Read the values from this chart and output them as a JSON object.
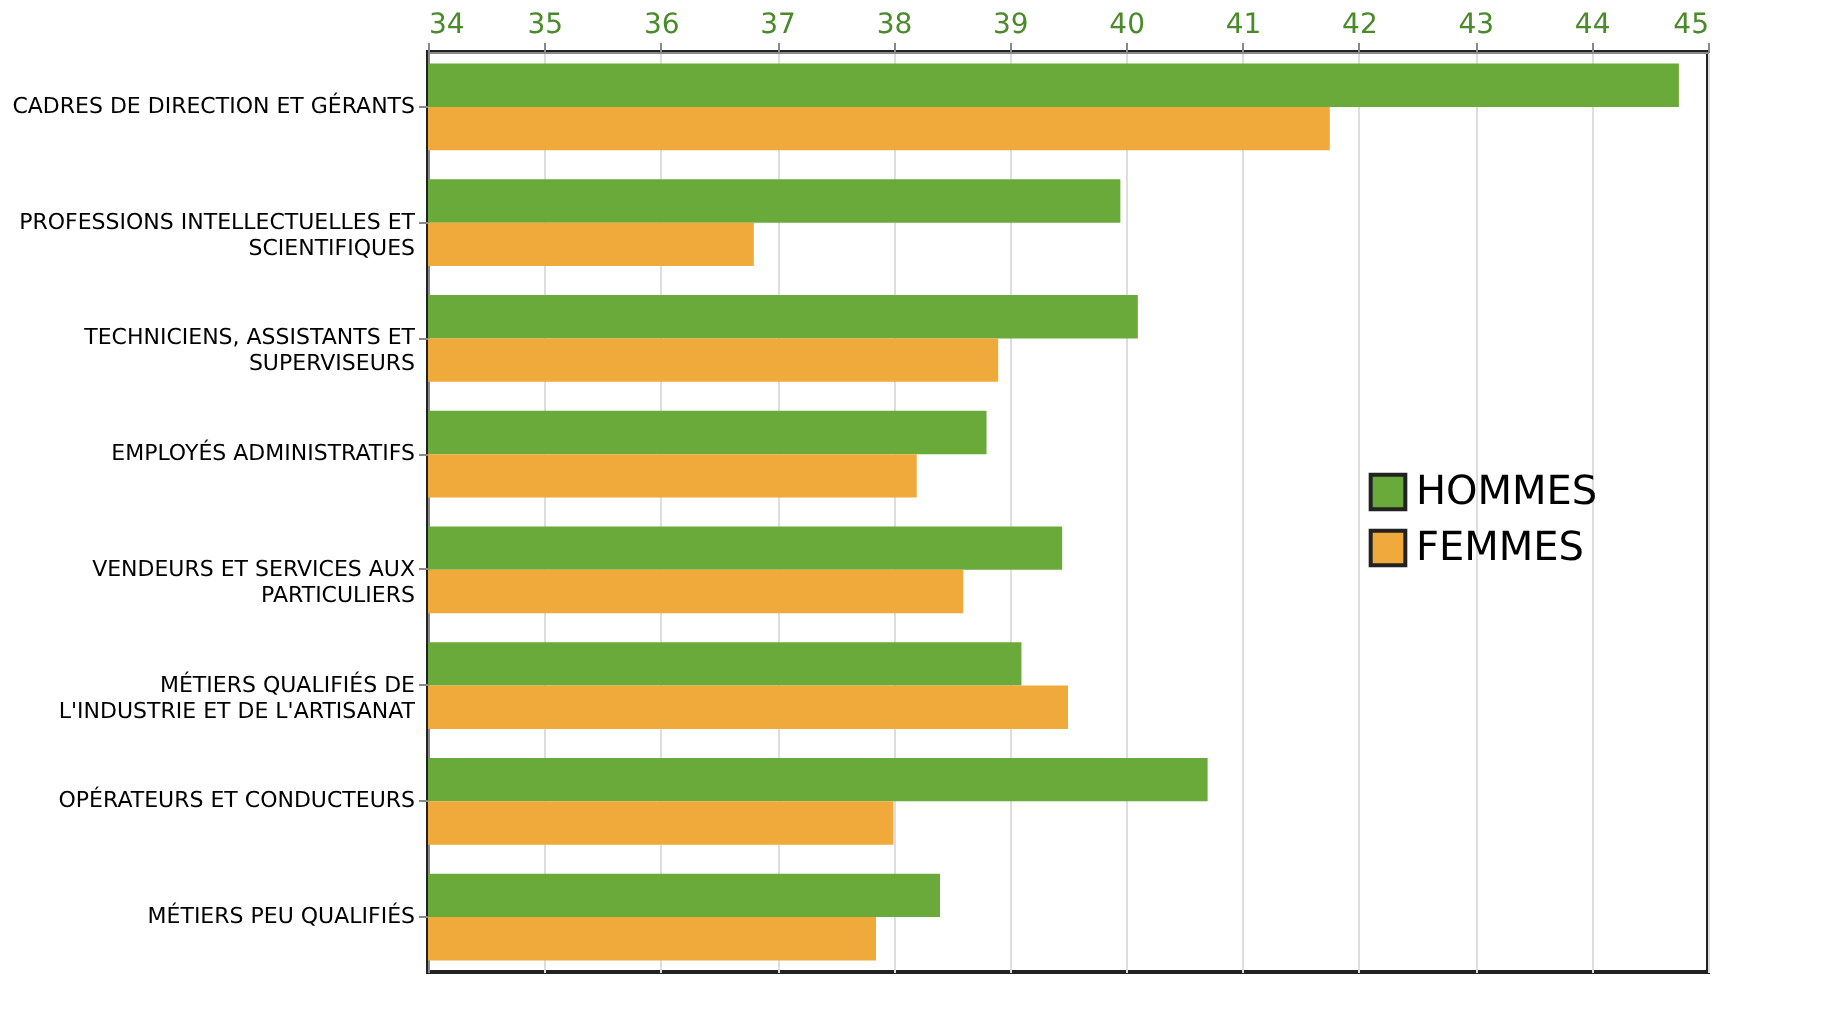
{
  "chart_data": {
    "type": "bar",
    "orientation": "horizontal",
    "categories": [
      "CADRES DE DIRECTION ET GÉRANTS",
      "PROFESSIONS INTELLECTUELLES ET SCIENTIFIQUES",
      "TECHNICIENS, ASSISTANTS ET SUPERVISEURS",
      "EMPLOYÉS ADMINISTRATIFS",
      "VENDEURS ET SERVICES AUX PARTICULIERS",
      "MÉTIERS QUALIFIÉS DE L'INDUSTRIE ET DE L'ARTISANAT",
      "OPÉRATEURS ET CONDUCTEURS",
      "MÉTIERS PEU QUALIFIÉS"
    ],
    "series": [
      {
        "name": "HOMMES",
        "color": "#6aaa3a",
        "values": [
          44.75,
          39.95,
          40.1,
          38.8,
          39.45,
          39.1,
          40.7,
          38.4
        ]
      },
      {
        "name": "FEMMES",
        "color": "#f0aa3c",
        "values": [
          41.75,
          36.8,
          38.9,
          38.2,
          38.6,
          39.5,
          38.0,
          37.85
        ]
      }
    ],
    "xlim": [
      34,
      45
    ],
    "xticks": [
      34,
      35,
      36,
      37,
      38,
      39,
      40,
      41,
      42,
      43,
      44,
      45
    ],
    "grid": "x",
    "legend": "right"
  }
}
